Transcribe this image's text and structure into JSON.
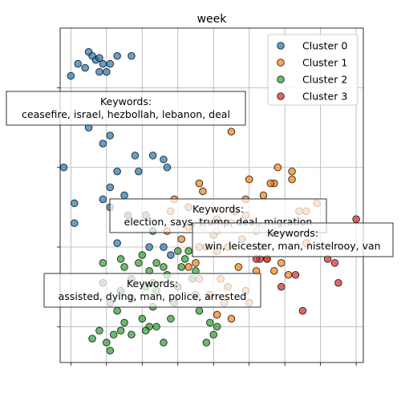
{
  "chart_data": {
    "type": "scatter",
    "title": "week",
    "xlabel": "",
    "ylabel": "",
    "xlim": [
      -2.3,
      6.2
    ],
    "ylim": [
      -2.9,
      5.5
    ],
    "grid": true,
    "legend_position": "top-right",
    "series": [
      {
        "name": "Cluster 0",
        "color": "#1f77b4",
        "points": [
          [
            -1.8,
            4.6
          ],
          [
            -1.5,
            4.9
          ],
          [
            -1.3,
            4.7
          ],
          [
            -1.1,
            4.6
          ],
          [
            -1.4,
            4.8
          ],
          [
            -0.9,
            4.6
          ],
          [
            -0.7,
            4.8
          ],
          [
            -0.3,
            4.8
          ],
          [
            -1.6,
            4.5
          ],
          [
            -1.2,
            4.4
          ],
          [
            -1.0,
            4.4
          ],
          [
            -1.2,
            4.75
          ],
          [
            -2.0,
            4.3
          ],
          [
            -1.5,
            3.0
          ],
          [
            -0.9,
            2.8
          ],
          [
            -0.2,
            2.3
          ],
          [
            0.3,
            2.3
          ],
          [
            -1.1,
            2.6
          ],
          [
            -2.2,
            2.0
          ],
          [
            -0.7,
            1.9
          ],
          [
            -0.1,
            1.9
          ],
          [
            0.6,
            2.2
          ],
          [
            0.7,
            2.0
          ],
          [
            -0.9,
            1.5
          ],
          [
            -0.5,
            1.3
          ],
          [
            -1.1,
            1.2
          ],
          [
            -0.9,
            1.0
          ],
          [
            -1.9,
            1.1
          ],
          [
            -1.9,
            0.6
          ],
          [
            -0.7,
            0.1
          ],
          [
            -0.4,
            0.8
          ],
          [
            0.2,
            0.0
          ],
          [
            0.8,
            -0.2
          ],
          [
            0.3,
            0.4
          ],
          [
            0.6,
            0.0
          ]
        ]
      },
      {
        "name": "Cluster 1",
        "color": "#ff7f0e",
        "points": [
          [
            2.5,
            2.9
          ],
          [
            3.7,
            1.6
          ],
          [
            3.6,
            1.6
          ],
          [
            4.9,
            1.1
          ],
          [
            4.2,
            1.9
          ],
          [
            3.8,
            2.0
          ],
          [
            3.0,
            1.7
          ],
          [
            2.9,
            1.2
          ],
          [
            3.4,
            1.3
          ],
          [
            2.6,
            0.9
          ],
          [
            2.1,
            0.7
          ],
          [
            2.5,
            0.6
          ],
          [
            3.3,
            0.5
          ],
          [
            3.2,
            0.4
          ],
          [
            3.7,
            0.4
          ],
          [
            4.6,
            0.9
          ],
          [
            4.2,
            1.7
          ],
          [
            4.4,
            0.9
          ],
          [
            1.7,
            1.4
          ],
          [
            1.3,
            1.0
          ],
          [
            0.7,
            0.4
          ],
          [
            1.3,
            0.5
          ],
          [
            1.7,
            0.5
          ],
          [
            2.0,
            0.3
          ],
          [
            2.1,
            -0.1
          ],
          [
            2.4,
            0.0
          ],
          [
            2.8,
            0.2
          ],
          [
            1.6,
            0.0
          ],
          [
            1.1,
            0.2
          ],
          [
            1.5,
            -0.4
          ],
          [
            1.3,
            -0.5
          ],
          [
            1.6,
            -0.8
          ],
          [
            2.2,
            -0.8
          ],
          [
            2.7,
            -0.5
          ],
          [
            3.2,
            -0.6
          ],
          [
            3.5,
            -0.3
          ],
          [
            3.7,
            -0.6
          ],
          [
            3.9,
            -0.4
          ],
          [
            4.1,
            -0.7
          ],
          [
            2.4,
            -1.0
          ],
          [
            2.9,
            -1.1
          ],
          [
            1.9,
            -1.2
          ],
          [
            2.3,
            -1.4
          ],
          [
            3.0,
            -1.4
          ],
          [
            2.1,
            -1.7
          ],
          [
            2.5,
            -1.8
          ],
          [
            0.9,
            1.2
          ],
          [
            0.8,
            0.9
          ],
          [
            1.6,
            1.6
          ],
          [
            2.1,
            0.4
          ],
          [
            4.6,
            0.1
          ],
          [
            3.3,
            0.0
          ],
          [
            2.9,
            0.8
          ],
          [
            1.8,
            0.0
          ]
        ]
      },
      {
        "name": "Cluster 2",
        "color": "#2ca02c",
        "points": [
          [
            1.3,
            -0.1
          ],
          [
            1.2,
            -0.3
          ],
          [
            1.5,
            -0.6
          ],
          [
            0.4,
            -0.4
          ],
          [
            0.0,
            -0.2
          ],
          [
            0.3,
            -0.9
          ],
          [
            0.7,
            -0.7
          ],
          [
            1.0,
            -1.0
          ],
          [
            -0.3,
            -0.8
          ],
          [
            -0.6,
            -1.1
          ],
          [
            -1.1,
            -0.9
          ],
          [
            -0.3,
            -1.3
          ],
          [
            0.4,
            -1.1
          ],
          [
            0.9,
            -1.4
          ],
          [
            1.5,
            -1.2
          ],
          [
            1.6,
            -1.6
          ],
          [
            0.8,
            -1.8
          ],
          [
            0.4,
            -2.0
          ],
          [
            0.0,
            -1.8
          ],
          [
            -0.5,
            -1.9
          ],
          [
            -0.6,
            -2.1
          ],
          [
            -0.8,
            -2.2
          ],
          [
            -1.0,
            -2.4
          ],
          [
            -1.2,
            -2.1
          ],
          [
            -1.4,
            -2.3
          ],
          [
            -0.9,
            -2.6
          ],
          [
            -0.3,
            -2.2
          ],
          [
            0.2,
            -2.0
          ],
          [
            0.6,
            -2.4
          ],
          [
            1.8,
            -2.4
          ],
          [
            2.0,
            -2.2
          ],
          [
            1.9,
            -1.9
          ],
          [
            -0.6,
            -0.3
          ],
          [
            -0.7,
            -1.6
          ],
          [
            0.1,
            0.8
          ],
          [
            -0.9,
            -1.4
          ],
          [
            0.3,
            -1.5
          ],
          [
            1.0,
            -0.1
          ],
          [
            1.4,
            -0.8
          ],
          [
            -1.1,
            -0.4
          ],
          [
            -0.5,
            -0.5
          ],
          [
            0.2,
            -0.6
          ],
          [
            0.6,
            -0.5
          ],
          [
            1.1,
            -0.5
          ],
          [
            0.1,
            -2.1
          ],
          [
            -0.1,
            -0.4
          ],
          [
            2.1,
            -2.0
          ],
          [
            0.1,
            -1.0
          ]
        ]
      },
      {
        "name": "Cluster 3",
        "color": "#d62728",
        "points": [
          [
            6.0,
            0.7
          ],
          [
            4.3,
            -0.7
          ],
          [
            3.9,
            -1.0
          ],
          [
            3.3,
            -0.3
          ],
          [
            3.5,
            -0.3
          ],
          [
            3.2,
            -0.3
          ],
          [
            5.5,
            -0.9
          ],
          [
            5.2,
            -0.3
          ],
          [
            5.4,
            -0.4
          ],
          [
            4.5,
            -1.6
          ]
        ]
      }
    ],
    "annotations": [
      {
        "text": "Keywords:\nceasefire, israel, hezbollah, lebanon, deal"
      },
      {
        "text": "Keywords:\nelection, says, trump, deal, migration"
      },
      {
        "text": "Keywords:\nwin, leicester, man, nistelrooy, van"
      },
      {
        "text": "Keywords:\nassisted, dying, man, police, arrested"
      }
    ]
  }
}
